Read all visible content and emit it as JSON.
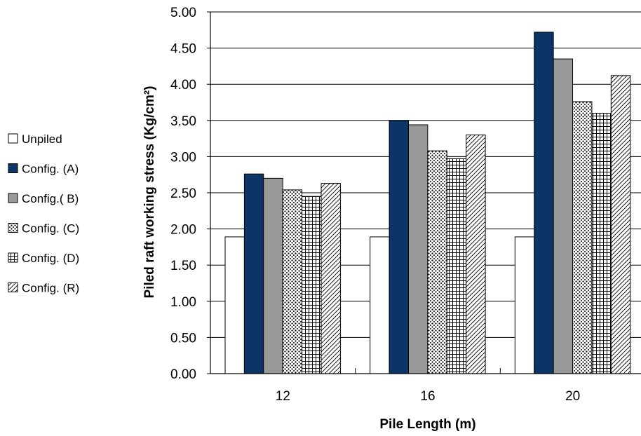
{
  "chart_data": {
    "type": "bar",
    "xlabel": "Pile  Length (m)",
    "ylabel": "Piled raft working stress (Kg/cm²)",
    "ylim": [
      0,
      5
    ],
    "y_ticks": [
      "0.00",
      "0.50",
      "1.00",
      "1.50",
      "2.00",
      "2.50",
      "3.00",
      "3.50",
      "4.00",
      "4.50",
      "5.00"
    ],
    "categories": [
      "12",
      "16",
      "20"
    ],
    "grid": true,
    "legend_position": "left",
    "series": [
      {
        "name": "Unpiled",
        "values": [
          1.89,
          1.89,
          1.89
        ],
        "fill": "#ffffff",
        "pattern": "none"
      },
      {
        "name": "Config. (A)",
        "values": [
          2.76,
          3.5,
          4.72
        ],
        "fill": "#0d3466",
        "pattern": "none"
      },
      {
        "name": "Config.( B)",
        "values": [
          2.7,
          3.44,
          4.35
        ],
        "fill": "#999999",
        "pattern": "none"
      },
      {
        "name": "Config. (C)",
        "values": [
          2.54,
          3.08,
          3.76
        ],
        "fill": "#ffffff",
        "pattern": "dots"
      },
      {
        "name": "Config. (D)",
        "values": [
          2.45,
          2.97,
          3.6
        ],
        "fill": "#ffffff",
        "pattern": "grid"
      },
      {
        "name": "Config. (R)",
        "values": [
          2.63,
          3.3,
          4.12
        ],
        "fill": "#ffffff",
        "pattern": "hatch"
      }
    ]
  }
}
